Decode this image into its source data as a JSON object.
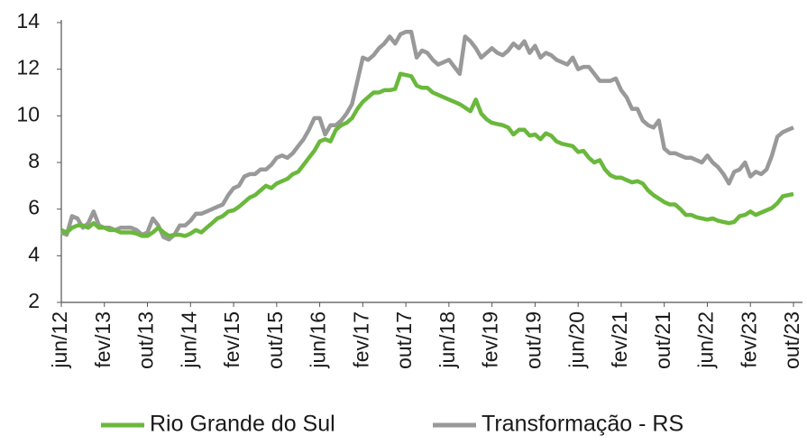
{
  "chart_data": {
    "type": "line",
    "categories": [
      "jun/12",
      null,
      null,
      null,
      null,
      null,
      null,
      null,
      "fev/13",
      null,
      null,
      null,
      null,
      null,
      null,
      null,
      "out/13",
      null,
      null,
      null,
      null,
      null,
      null,
      null,
      "jun/14",
      null,
      null,
      null,
      null,
      null,
      null,
      null,
      "fev/15",
      null,
      null,
      null,
      null,
      null,
      null,
      null,
      "out/15",
      null,
      null,
      null,
      null,
      null,
      null,
      null,
      "jun/16",
      null,
      null,
      null,
      null,
      null,
      null,
      null,
      "fev/17",
      null,
      null,
      null,
      null,
      null,
      null,
      null,
      "out/17",
      null,
      null,
      null,
      null,
      null,
      null,
      null,
      "jun/18",
      null,
      null,
      null,
      null,
      null,
      null,
      null,
      "fev/19",
      null,
      null,
      null,
      null,
      null,
      null,
      null,
      "out/19",
      null,
      null,
      null,
      null,
      null,
      null,
      null,
      "jun/20",
      null,
      null,
      null,
      null,
      null,
      null,
      null,
      "fev/21",
      null,
      null,
      null,
      null,
      null,
      null,
      null,
      "out/21",
      null,
      null,
      null,
      null,
      null,
      null,
      null,
      "jun/22",
      null,
      null,
      null,
      null,
      null,
      null,
      null,
      "fev/23",
      null,
      null,
      null,
      null,
      null,
      null,
      null,
      "out/23"
    ],
    "series": [
      {
        "name": "Rio Grande do Sul",
        "color": "#6ab83c",
        "values": [
          5.1,
          5.0,
          5.2,
          5.3,
          5.3,
          5.2,
          5.4,
          5.2,
          5.2,
          5.1,
          5.1,
          5.0,
          5.0,
          5.0,
          4.95,
          4.85,
          4.85,
          5.0,
          5.2,
          5.0,
          4.85,
          4.9,
          4.9,
          4.85,
          4.95,
          5.1,
          5.0,
          5.2,
          5.4,
          5.6,
          5.7,
          5.9,
          5.95,
          6.1,
          6.3,
          6.5,
          6.6,
          6.8,
          7.0,
          6.9,
          7.1,
          7.2,
          7.3,
          7.5,
          7.6,
          7.9,
          8.2,
          8.5,
          8.9,
          9.0,
          8.9,
          9.4,
          9.6,
          9.7,
          9.9,
          10.3,
          10.6,
          10.8,
          11.0,
          11.0,
          11.1,
          11.1,
          11.15,
          11.8,
          11.75,
          11.7,
          11.3,
          11.2,
          11.2,
          11.0,
          10.9,
          10.8,
          10.7,
          10.6,
          10.5,
          10.35,
          10.2,
          10.7,
          10.1,
          9.85,
          9.7,
          9.65,
          9.6,
          9.5,
          9.2,
          9.4,
          9.4,
          9.15,
          9.2,
          9.0,
          9.25,
          9.15,
          8.9,
          8.8,
          8.75,
          8.7,
          8.45,
          8.5,
          8.2,
          8.0,
          8.1,
          7.7,
          7.45,
          7.35,
          7.35,
          7.25,
          7.15,
          7.2,
          7.1,
          6.8,
          6.6,
          6.45,
          6.3,
          6.2,
          6.2,
          6.0,
          5.75,
          5.75,
          5.65,
          5.6,
          5.55,
          5.6,
          5.5,
          5.45,
          5.4,
          5.45,
          5.7,
          5.75,
          5.9,
          5.75,
          5.85,
          5.95,
          6.05,
          6.25,
          6.55,
          6.6,
          6.65
        ]
      },
      {
        "name": "Transformação - RS",
        "color": "#999999",
        "values": [
          5.0,
          4.9,
          5.7,
          5.6,
          5.2,
          5.4,
          5.9,
          5.3,
          5.2,
          5.2,
          5.1,
          5.2,
          5.2,
          5.2,
          5.1,
          4.9,
          5.0,
          5.6,
          5.3,
          4.8,
          4.7,
          4.9,
          5.3,
          5.3,
          5.5,
          5.8,
          5.8,
          5.9,
          6.0,
          6.1,
          6.2,
          6.6,
          6.9,
          7.0,
          7.4,
          7.5,
          7.5,
          7.7,
          7.7,
          7.9,
          8.2,
          8.3,
          8.2,
          8.4,
          8.7,
          9.0,
          9.4,
          9.9,
          9.9,
          9.2,
          9.6,
          9.6,
          9.8,
          10.1,
          10.5,
          11.5,
          12.5,
          12.4,
          12.6,
          12.9,
          13.1,
          13.4,
          13.1,
          13.5,
          13.6,
          13.6,
          12.5,
          12.8,
          12.7,
          12.4,
          12.2,
          12.3,
          12.4,
          12.1,
          11.8,
          13.4,
          13.2,
          12.9,
          12.5,
          12.7,
          12.9,
          12.7,
          12.6,
          12.8,
          13.1,
          12.9,
          13.2,
          12.7,
          13.0,
          12.5,
          12.7,
          12.6,
          12.4,
          12.3,
          12.2,
          12.5,
          12.0,
          12.1,
          12.1,
          11.8,
          11.5,
          11.5,
          11.5,
          11.6,
          11.1,
          10.8,
          10.3,
          10.3,
          9.8,
          9.6,
          9.5,
          9.8,
          8.6,
          8.4,
          8.4,
          8.3,
          8.2,
          8.2,
          8.1,
          8.0,
          8.3,
          8.0,
          7.8,
          7.5,
          7.1,
          7.6,
          7.7,
          8.0,
          7.4,
          7.6,
          7.5,
          7.7,
          8.3,
          9.1,
          9.3,
          9.4,
          9.5
        ]
      }
    ],
    "ylim": [
      2,
      14
    ],
    "yticks": [
      2,
      4,
      6,
      8,
      10,
      12,
      14
    ],
    "grid": false,
    "legend": "bottom"
  }
}
